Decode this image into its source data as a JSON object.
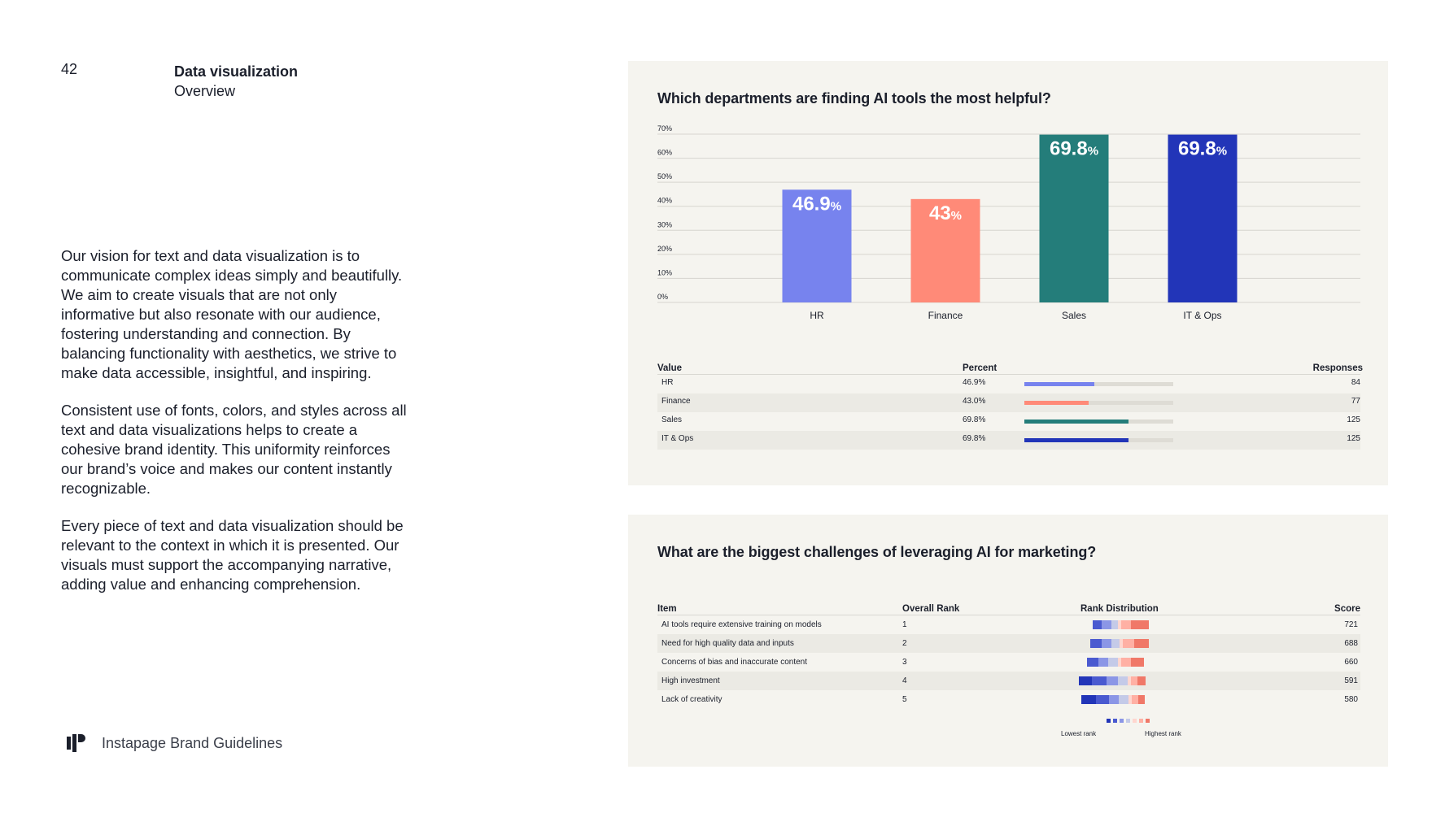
{
  "page_number": "42",
  "section": {
    "title": "Data visualization",
    "subtitle": "Overview"
  },
  "body": {
    "paragraphs": [
      "Our vision for text and data visualization is to communicate complex ideas simply and beautifully. We aim to create visuals that are not only informative but also resonate with our audience, fostering understanding and connection. By balancing functionality with aesthetics, we strive to make data accessible, insightful, and inspiring.",
      "Consistent use of fonts, colors, and styles across all text and data visualizations helps to create a cohesive brand identity. This uniformity reinforces our brand’s voice and makes our content instantly recognizable.",
      "Every piece of text and data visualization should be relevant to the context in which it is presented. Our visuals must support the accompanying narrative, adding value and enhancing comprehension."
    ]
  },
  "footer": {
    "text": "Instapage Brand Guidelines",
    "logo_icon": "instapage-logo-icon"
  },
  "colors": {
    "hr": "#7783ee",
    "finance": "#ff8a78",
    "sales": "#247d7a",
    "itops": "#2235b8",
    "card_bg": "#f5f4ef"
  },
  "chart_data": [
    {
      "type": "bar",
      "title": "Which departments are finding AI tools the most helpful?",
      "categories": [
        "HR",
        "Finance",
        "Sales",
        "IT & Ops"
      ],
      "values": [
        46.9,
        43,
        69.8,
        69.8
      ],
      "value_labels": [
        "46.9",
        "43",
        "69.8",
        "69.8"
      ],
      "value_suffix": "%",
      "ylim": [
        0,
        70
      ],
      "yticks": [
        "0%",
        "10%",
        "20%",
        "30%",
        "40%",
        "50%",
        "60%",
        "70%"
      ],
      "grid": true,
      "colors": [
        "#7783ee",
        "#ff8a78",
        "#247d7a",
        "#2235b8"
      ]
    }
  ],
  "table1": {
    "headers": {
      "value": "Value",
      "percent": "Percent",
      "responses": "Responses"
    },
    "rows": [
      {
        "value": "HR",
        "percent": "46.9%",
        "fraction": 0.469,
        "responses": "84",
        "color": "#7783ee"
      },
      {
        "value": "Finance",
        "percent": "43.0%",
        "fraction": 0.43,
        "responses": "77",
        "color": "#ff8a78"
      },
      {
        "value": "Sales",
        "percent": "69.8%",
        "fraction": 0.698,
        "responses": "125",
        "color": "#247d7a"
      },
      {
        "value": "IT & Ops",
        "percent": "69.8%",
        "fraction": 0.698,
        "responses": "125",
        "color": "#2235b8"
      }
    ]
  },
  "table2": {
    "title": "What are the biggest challenges of leveraging AI for marketing?",
    "headers": {
      "item": "Item",
      "rank": "Overall Rank",
      "distribution": "Rank Distribution",
      "score": "Score"
    },
    "rows": [
      {
        "item": "AI tools require extensive training on models",
        "rank": "1",
        "score": "721"
      },
      {
        "item": "Need for high quality data and inputs",
        "rank": "2",
        "score": "688"
      },
      {
        "item": "Concerns of bias and inaccurate content",
        "rank": "3",
        "score": "660"
      },
      {
        "item": "High investment",
        "rank": "4",
        "score": "591"
      },
      {
        "item": "Lack of creativity",
        "rank": "5",
        "score": "580"
      }
    ],
    "legend": {
      "lowest": "Lowest rank",
      "highest": "Highest rank"
    }
  }
}
